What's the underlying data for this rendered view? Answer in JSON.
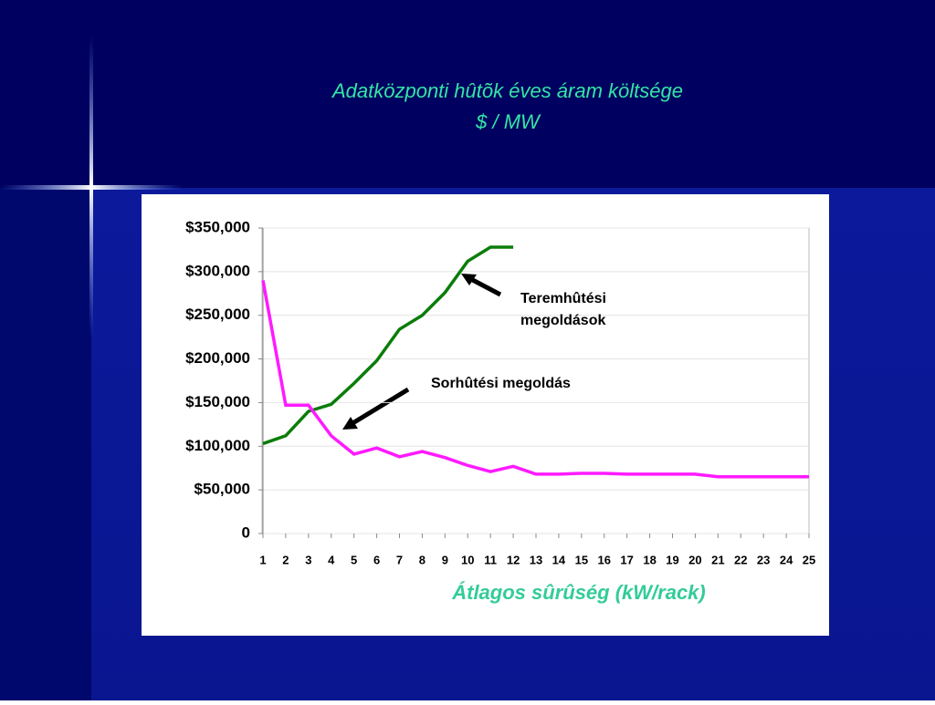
{
  "chart_data": {
    "type": "line",
    "title": "Adatközponti hûtõk éves áram költsége",
    "subtitle": "$ / MW",
    "x_label": "Átlagos sûrûség (kW/rack)",
    "categories": [
      "1",
      "2",
      "3",
      "4",
      "5",
      "6",
      "7",
      "8",
      "9",
      "10",
      "11",
      "12",
      "13",
      "14",
      "15",
      "16",
      "17",
      "18",
      "19",
      "20",
      "21",
      "22",
      "23",
      "24",
      "25"
    ],
    "series": [
      {
        "color": "#0a7d0a",
        "values": [
          103000,
          112000,
          140000,
          148000,
          172000,
          198000,
          234000,
          250000,
          276000,
          312000,
          328000,
          328000,
          null,
          null,
          null,
          null,
          null,
          null,
          null,
          null,
          null,
          null,
          null,
          null,
          null
        ]
      },
      {
        "color": "#ff1aff",
        "values": [
          290000,
          147000,
          147000,
          112000,
          91000,
          98000,
          88000,
          94000,
          87000,
          78000,
          71000,
          77000,
          68000,
          68000,
          69000,
          69000,
          68000,
          68000,
          68000,
          68000,
          65000,
          65000,
          65000,
          65000,
          65000
        ]
      }
    ],
    "ylim": [
      0,
      350000
    ],
    "yticks": [
      0,
      {
        "value": 50000,
        "label": "$50,000"
      },
      {
        "value": 100000,
        "label": "$100,000"
      },
      {
        "value": 150000,
        "label": "$150,000"
      },
      {
        "value": 200000,
        "label": "$200,000"
      },
      {
        "value": 250000,
        "label": "$250,000"
      },
      {
        "value": 300000,
        "label": "$300,000"
      },
      {
        "value": 350000,
        "label": "$350,000"
      }
    ],
    "grid": true,
    "annotations": [
      {
        "lines": [
          "Teremhûtési",
          "megoldások"
        ]
      },
      {
        "lines": [
          "Sorhûtési megoldás"
        ]
      }
    ]
  }
}
